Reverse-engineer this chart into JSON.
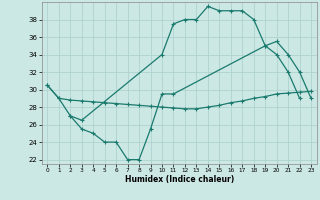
{
  "xlabel": "Humidex (Indice chaleur)",
  "xlim": [
    -0.5,
    23.5
  ],
  "ylim": [
    21.5,
    40
  ],
  "yticks": [
    22,
    24,
    26,
    28,
    30,
    32,
    34,
    36,
    38
  ],
  "xticks": [
    0,
    1,
    2,
    3,
    4,
    5,
    6,
    7,
    8,
    9,
    10,
    11,
    12,
    13,
    14,
    15,
    16,
    17,
    18,
    19,
    20,
    21,
    22,
    23
  ],
  "bg_color": "#cce8e4",
  "grid_color": "#aacfcb",
  "line_color": "#1a7a6e",
  "line1_x": [
    0,
    1,
    2,
    3,
    10,
    11,
    12,
    13,
    14,
    15,
    16,
    17,
    18,
    19,
    20,
    21,
    22
  ],
  "line1_y": [
    30.5,
    29,
    27,
    26.5,
    34,
    37.5,
    38,
    38,
    39.5,
    39,
    39,
    39,
    38,
    35,
    34,
    32,
    29
  ],
  "line2_x": [
    0,
    1,
    2,
    3,
    4,
    5,
    6,
    7,
    8,
    9,
    10,
    11,
    12,
    13,
    14,
    15,
    16,
    17,
    18,
    19,
    20,
    21,
    22,
    23
  ],
  "line2_y": [
    30.5,
    29,
    28.8,
    28.7,
    28.6,
    28.5,
    28.4,
    28.3,
    28.2,
    28.1,
    28.0,
    27.9,
    27.8,
    27.8,
    28.0,
    28.2,
    28.5,
    28.7,
    29.0,
    29.2,
    29.5,
    29.6,
    29.7,
    29.8
  ],
  "line3_x": [
    2,
    3,
    4,
    5,
    6,
    7,
    8,
    9,
    10,
    11,
    19,
    20,
    21,
    22,
    23
  ],
  "line3_y": [
    27,
    25.5,
    25,
    24,
    24,
    22,
    22,
    25.5,
    29.5,
    29.5,
    35,
    35.5,
    34,
    32,
    29
  ]
}
